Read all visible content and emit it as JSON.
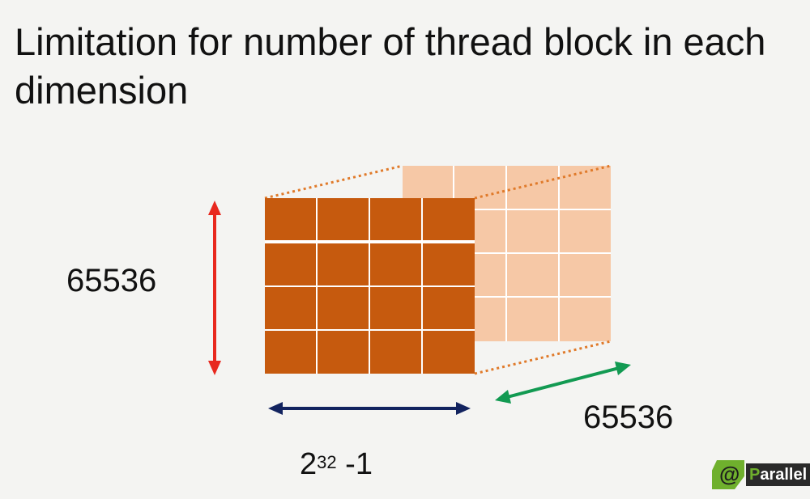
{
  "title": "Limitation for number of thread block in each dimension",
  "labels": {
    "height": "65536",
    "depth": "65536",
    "width_base": "2",
    "width_exp": "32",
    "width_suffix": " -1"
  },
  "colors": {
    "front_face": "#c65a0e",
    "back_face": "#f6c8a6",
    "grid_lines": "#ffffff",
    "dotted_edges": "#e07a2a",
    "height_arrow": "#e8281e",
    "width_arrow": "#12235f",
    "depth_arrow": "#129a52"
  },
  "grid": {
    "rows": 4,
    "cols": 4
  },
  "logo": {
    "first_letter": "P",
    "rest": "arallel",
    "icon": "parallel-logo-icon"
  }
}
